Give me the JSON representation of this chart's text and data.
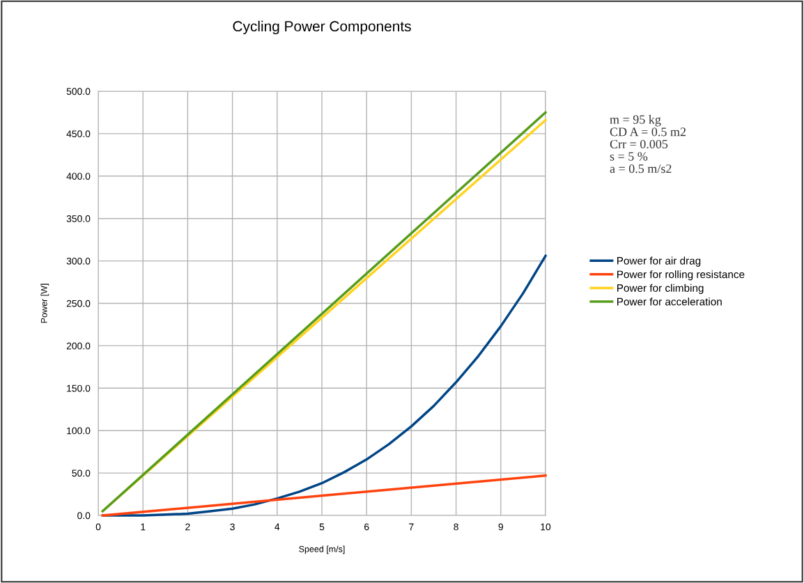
{
  "chart_data": {
    "type": "line",
    "title": "Cycling Power Components",
    "xlabel": "Speed [m/s]",
    "ylabel": "Power [W]",
    "annotations": [
      "m = 95 kg\nCD A = 0.5 m2\nCrr = 0.005\ns = 5 %\na = 0.5 m/s2"
    ],
    "series": [
      {
        "name": "Power for air drag",
        "color": "#004586",
        "x": [
          0.1,
          0.5,
          1,
          1.5,
          2,
          2.5,
          3,
          3.5,
          4,
          4.5,
          5,
          5.5,
          6,
          6.5,
          7,
          7.5,
          8,
          8.5,
          9,
          9.5,
          10
        ],
        "values": [
          0,
          0,
          0,
          1,
          2,
          5,
          8,
          13,
          20,
          28,
          38,
          51,
          66,
          84,
          105,
          129,
          157,
          188,
          223,
          262,
          306
        ]
      },
      {
        "name": "Power for rolling resistance",
        "color": "#ff420e",
        "x": [
          0.1,
          10
        ],
        "values": [
          0,
          47
        ]
      },
      {
        "name": "Power for climbing",
        "color": "#ffd320",
        "x": [
          0.1,
          10
        ],
        "values": [
          5,
          466
        ]
      },
      {
        "name": "Power for acceleration",
        "color": "#579d1c",
        "x": [
          0.1,
          10
        ],
        "values": [
          5,
          475
        ]
      }
    ],
    "xlim": [
      0,
      10
    ],
    "xticks": [
      0,
      1,
      2,
      3,
      4,
      5,
      6,
      7,
      8,
      9,
      10
    ],
    "ylim": [
      0,
      500
    ],
    "yticks": [
      {
        "value": 0,
        "label": "0.0"
      },
      {
        "value": 50,
        "label": "50.0"
      },
      {
        "value": 100,
        "label": "100.0"
      },
      {
        "value": 150,
        "label": "150.0"
      },
      {
        "value": 200,
        "label": "200.0"
      },
      {
        "value": 250,
        "label": "250.0"
      },
      {
        "value": 300,
        "label": "300.0"
      },
      {
        "value": 350,
        "label": "350.0"
      },
      {
        "value": 400,
        "label": "400.0"
      },
      {
        "value": 450,
        "label": "450.0"
      },
      {
        "value": 500,
        "label": "500.0"
      }
    ],
    "grid": true,
    "legend": "right",
    "line_style": "solid",
    "marker": "none"
  }
}
